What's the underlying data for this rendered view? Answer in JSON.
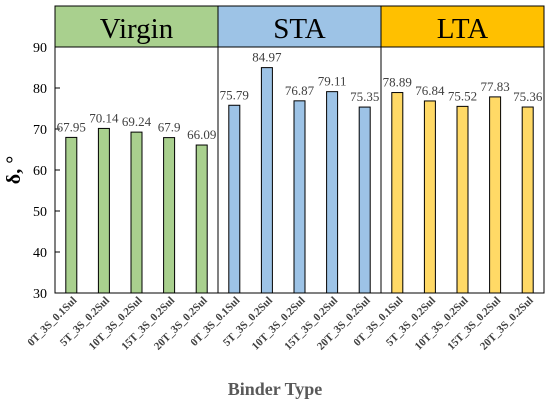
{
  "chart_data": {
    "type": "bar",
    "title": "",
    "xlabel": "Binder Type",
    "ylabel": "δ, °",
    "ylim": [
      30,
      90
    ],
    "yticks": [
      30,
      40,
      50,
      60,
      70,
      80,
      90
    ],
    "grid": false,
    "groups": [
      {
        "name": "Virgin",
        "header_color": "#a9d08e",
        "bar_color": "#a9d08e",
        "categories": [
          "0T_3S_0.1Sul",
          "5T_3S_0.2Sul",
          "10T_3S_0.2Sul",
          "15T_3S_0.2Sul",
          "20T_3S_0.2Sul"
        ],
        "values": [
          67.95,
          70.14,
          69.24,
          67.9,
          66.09
        ],
        "labels": [
          "67.95",
          "70.14",
          "69.24",
          "67.9",
          "66.09"
        ]
      },
      {
        "name": "STA",
        "header_color": "#9dc3e6",
        "bar_color": "#9dc3e6",
        "categories": [
          "0T_3S_0.1Sul",
          "5T_3S_0.2Sul",
          "10T_3S_0.2Sul",
          "15T_3S_0.2Sul",
          "20T_3S_0.2Sul"
        ],
        "values": [
          75.79,
          84.97,
          76.87,
          79.11,
          75.35
        ],
        "labels": [
          "75.79",
          "84.97",
          "76.87",
          "79.11",
          "75.35"
        ]
      },
      {
        "name": "LTA",
        "header_color": "#ffc000",
        "bar_color": "#ffd966",
        "categories": [
          "0T_3S_0.1Sul",
          "5T_3S_0.2Sul",
          "10T_3S_0.2Sul",
          "15T_3S_0.2Sul",
          "20T_3S_0.2Sul"
        ],
        "values": [
          78.89,
          76.84,
          75.52,
          77.83,
          75.36
        ],
        "labels": [
          "78.89",
          "76.84",
          "75.52",
          "77.83",
          "75.36"
        ]
      }
    ]
  }
}
